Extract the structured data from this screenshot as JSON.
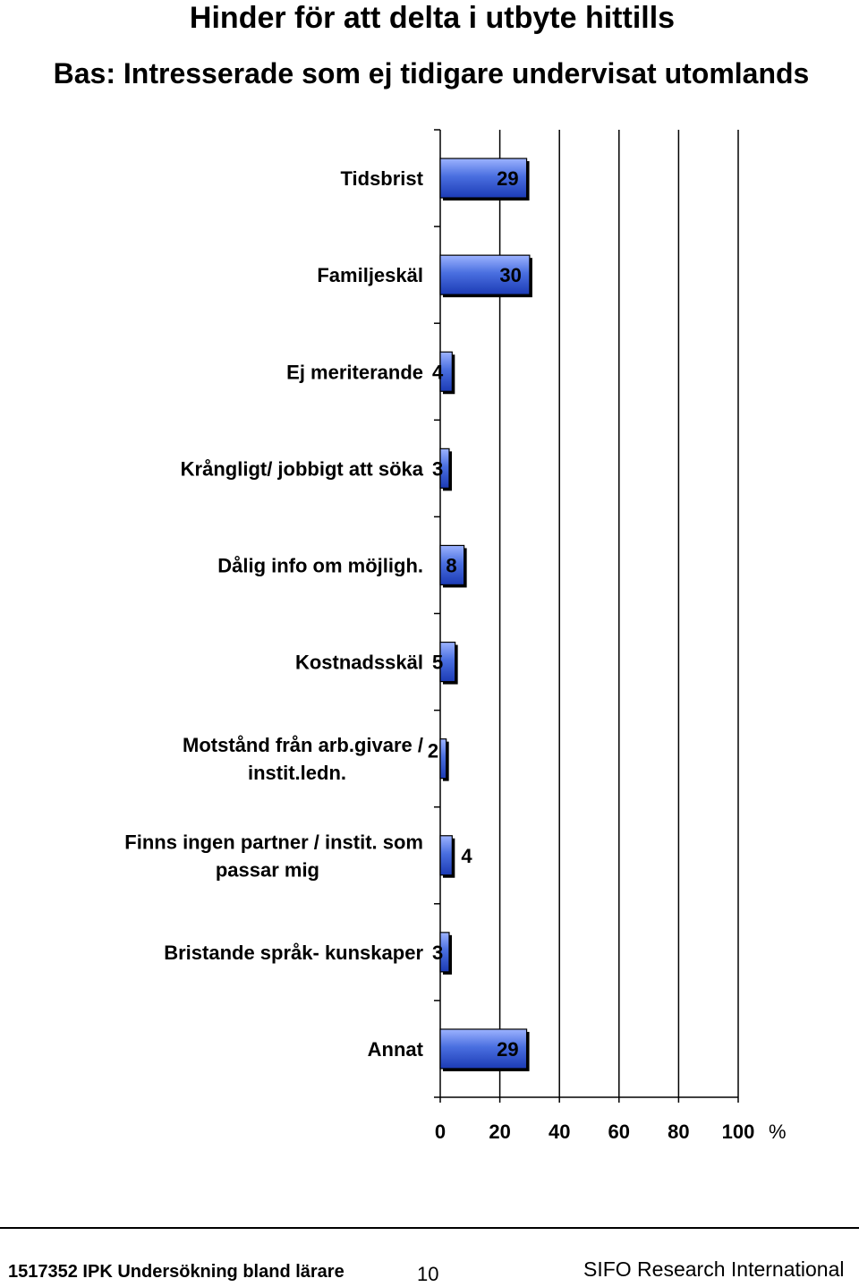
{
  "chart_data": {
    "type": "bar",
    "orientation": "horizontal",
    "title": "Hinder för att delta i utbyte hittills",
    "subtitle": "Bas: Intresserade som ej tidigare undervisat utomlands",
    "categories": [
      [
        "Tidsbrist"
      ],
      [
        "Familjeskäl"
      ],
      [
        "Ej meriterande"
      ],
      [
        "Krångligt/ jobbigt att söka"
      ],
      [
        "Dålig info om möjligh."
      ],
      [
        "Kostnadsskäl"
      ],
      [
        "Motstånd från arb.givare /",
        "instit.ledn."
      ],
      [
        "Finns ingen partner / instit. som",
        "passar mig"
      ],
      [
        "Bristande språk-   kunskaper"
      ],
      [
        "Annat"
      ]
    ],
    "values": [
      29,
      30,
      4,
      3,
      8,
      5,
      2,
      4,
      3,
      29
    ],
    "value_labels": [
      "29",
      "30",
      "4",
      "3",
      "8",
      "5",
      "2",
      "4",
      "3",
      "29"
    ],
    "xlim": [
      0,
      100
    ],
    "xticks": [
      "0",
      "20",
      "40",
      "60",
      "80",
      "100"
    ],
    "xunit": "%",
    "grid": "vertical",
    "bar_color": "#4a6fe0"
  },
  "footer": {
    "left": "1517352 IPK Undersökning bland lärare",
    "page": "10",
    "right": "SIFO Research International"
  }
}
